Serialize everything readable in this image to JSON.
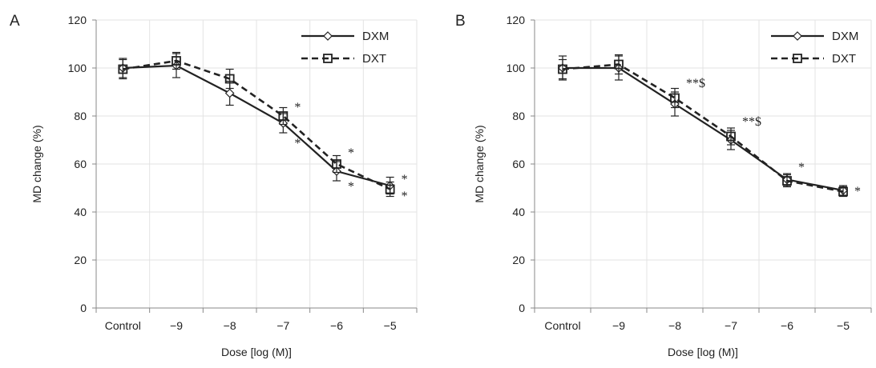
{
  "colors": {
    "axis": "#888888",
    "grid": "#e3e3e3",
    "line": "#222222"
  },
  "chart_data": [
    {
      "type": "line",
      "panel_label": "A",
      "categories": [
        "Control",
        "−9",
        "−8",
        "−7",
        "−6",
        "−5"
      ],
      "yticks": [
        "0",
        "20",
        "40",
        "60",
        "80",
        "100",
        "120"
      ],
      "ylim": [
        0,
        120
      ],
      "xlabel": "Dose [log (M)]",
      "ylabel": "MD change (%)",
      "grid": true,
      "legend_position": "top-right",
      "series": [
        {
          "name": "DXM",
          "marker": "diamond",
          "dash": "solid",
          "values": [
            100,
            101,
            89.5,
            77,
            57,
            51
          ],
          "errors": [
            4,
            5,
            5,
            4,
            4,
            3.5
          ]
        },
        {
          "name": "DXT",
          "marker": "square",
          "dash": "dashed",
          "values": [
            99.5,
            103,
            95.5,
            80,
            60,
            49.5
          ],
          "errors": [
            4,
            3.5,
            4,
            3.5,
            3.5,
            3
          ]
        }
      ],
      "annotations": [
        {
          "text": "*",
          "x": "−7",
          "y": 82,
          "side": "right"
        },
        {
          "text": "*",
          "x": "−7",
          "y": 67,
          "side": "right"
        },
        {
          "text": "*",
          "x": "−6",
          "y": 63,
          "side": "right"
        },
        {
          "text": "*",
          "x": "−6",
          "y": 49,
          "side": "right"
        },
        {
          "text": "*",
          "x": "−5",
          "y": 52,
          "side": "right"
        },
        {
          "text": "*",
          "x": "−5",
          "y": 45,
          "side": "right"
        }
      ]
    },
    {
      "type": "line",
      "panel_label": "B",
      "categories": [
        "Control",
        "−9",
        "−8",
        "−7",
        "−6",
        "−5"
      ],
      "yticks": [
        "0",
        "20",
        "40",
        "60",
        "80",
        "100",
        "120"
      ],
      "ylim": [
        0,
        120
      ],
      "xlabel": "Dose [log (M)]",
      "ylabel": "MD change (%)",
      "grid": true,
      "legend_position": "top-right",
      "series": [
        {
          "name": "DXM",
          "marker": "diamond",
          "dash": "solid",
          "values": [
            100,
            100,
            85,
            70,
            53.5,
            49
          ],
          "errors": [
            5,
            5,
            5,
            4,
            2.5,
            2
          ]
        },
        {
          "name": "DXT",
          "marker": "square",
          "dash": "dashed",
          "values": [
            99.5,
            101.5,
            87.5,
            71.5,
            53,
            48.5
          ],
          "errors": [
            4,
            4,
            4,
            3.5,
            2.5,
            2
          ]
        }
      ],
      "annotations": [
        {
          "text": "**$",
          "x": "−8",
          "y": 92,
          "side": "right"
        },
        {
          "text": "**$",
          "x": "−7",
          "y": 76,
          "side": "right"
        },
        {
          "text": "*",
          "x": "−6",
          "y": 57,
          "side": "right"
        },
        {
          "text": "*",
          "x": "−5",
          "y": 47,
          "side": "right"
        }
      ]
    }
  ]
}
